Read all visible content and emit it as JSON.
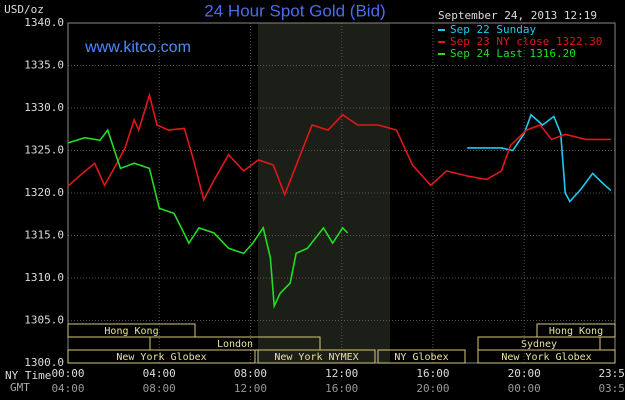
{
  "chart_data": {
    "type": "line",
    "title": "24 Hour Spot Gold (Bid)",
    "y_label": "USD/oz",
    "website": "www.kitco.com",
    "timestamp": "September 24, 2013 12:19",
    "x_label": "NY Time",
    "x2_label": "GMT",
    "xlim": [
      0,
      23.98
    ],
    "xticks": [
      {
        "value": 0,
        "label": "00:00"
      },
      {
        "value": 4,
        "label": "04:00"
      },
      {
        "value": 8,
        "label": "08:00"
      },
      {
        "value": 12,
        "label": "12:00"
      },
      {
        "value": 16,
        "label": "16:00"
      },
      {
        "value": 20,
        "label": "20:00"
      },
      {
        "value": 23.98,
        "label": "23:59"
      }
    ],
    "x2tick_labels": [
      "04:00",
      "08:00",
      "12:00",
      "16:00",
      "20:00",
      "00:00",
      "03:59"
    ],
    "ylim": [
      1300,
      1340
    ],
    "yticks": [
      {
        "value": 1300,
        "label": "1300.0"
      },
      {
        "value": 1305,
        "label": "1305.0"
      },
      {
        "value": 1310,
        "label": "1310.0"
      },
      {
        "value": 1315,
        "label": "1315.0"
      },
      {
        "value": 1320,
        "label": "1320.0"
      },
      {
        "value": 1325,
        "label": "1325.0"
      },
      {
        "value": 1330,
        "label": "1330.0"
      },
      {
        "value": 1335,
        "label": "1335.0"
      },
      {
        "value": 1340,
        "label": "1340.0"
      }
    ],
    "grid": true,
    "sessions": [
      "Hong Kong",
      "London",
      "New York Globex",
      "New York NYMEX",
      "NY Globex",
      "Hong Kong",
      "Sydney",
      "New York Globex"
    ],
    "series": [
      {
        "name": "Sep 22 Sunday",
        "color": "#22c8f0",
        "x": [
          17.5,
          19,
          19.5,
          20,
          20.3,
          20.8,
          21.3,
          21.6,
          21.8,
          22,
          22.5,
          23,
          23.5,
          23.8
        ],
        "values": [
          1325.3,
          1325.3,
          1325,
          1327,
          1329.2,
          1328,
          1329,
          1327,
          1320,
          1319,
          1320.5,
          1322.3,
          1321,
          1320.3
        ]
      },
      {
        "name": "Sep 23 NY close 1322.30",
        "color": "#e01818",
        "x": [
          0,
          0.5,
          1.17,
          1.6,
          2.04,
          2.5,
          2.9,
          3.1,
          3.57,
          3.9,
          4.4,
          5.1,
          5.5,
          5.95,
          6.4,
          7.04,
          7.7,
          8.35,
          9,
          9.5,
          10.1,
          10.7,
          11.4,
          12.04,
          12.7,
          13.6,
          14.4,
          15.1,
          15.9,
          16.6,
          17.5,
          18.35,
          19,
          19.4,
          20.1,
          20.7,
          21.2,
          21.8,
          22.7,
          23.8
        ],
        "values": [
          1320.8,
          1322,
          1323.5,
          1320.9,
          1323,
          1325.3,
          1328.6,
          1327.4,
          1331.5,
          1328,
          1327.4,
          1327.6,
          1323.9,
          1319.2,
          1321.5,
          1324.5,
          1322.6,
          1323.9,
          1323.3,
          1319.8,
          1323.9,
          1328,
          1327.4,
          1329.2,
          1328,
          1328,
          1327.4,
          1323.3,
          1320.9,
          1322.6,
          1322,
          1321.6,
          1322.6,
          1325.6,
          1327.4,
          1328,
          1326.3,
          1326.9,
          1326.3,
          1326.3
        ]
      },
      {
        "name": "Sep 24 Last 1316.20",
        "color": "#22dd22",
        "x": [
          0,
          0.74,
          1.4,
          1.74,
          2.3,
          2.9,
          3.57,
          4,
          4.65,
          5.3,
          5.74,
          6.4,
          7.04,
          7.7,
          8.1,
          8.56,
          8.87,
          9.04,
          9.3,
          9.74,
          10,
          10.5,
          11.2,
          11.6,
          12.04,
          12.26
        ],
        "values": [
          1325.9,
          1326.5,
          1326.2,
          1327.4,
          1322.9,
          1323.5,
          1322.9,
          1318.2,
          1317.6,
          1314.1,
          1315.9,
          1315.3,
          1313.5,
          1312.9,
          1314.1,
          1315.9,
          1312.4,
          1306.7,
          1308.2,
          1309.4,
          1312.9,
          1313.5,
          1315.9,
          1314.1,
          1315.9,
          1315.3
        ]
      }
    ]
  }
}
